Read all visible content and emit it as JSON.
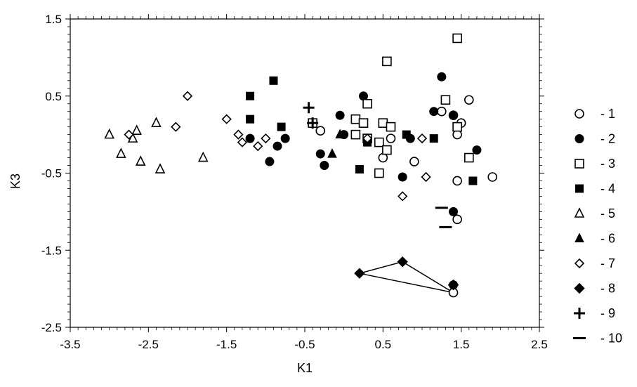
{
  "chart_data": {
    "type": "scatter",
    "xlabel": "K1",
    "ylabel": "K3",
    "xlim": [
      -3.5,
      2.5
    ],
    "ylim": [
      -2.5,
      1.5
    ],
    "xticks": [
      -3.5,
      -2.5,
      -1.5,
      -0.5,
      0.5,
      1.5,
      2.5
    ],
    "xtick_labels": [
      "-3.5",
      "-2.5",
      "-1.5",
      "-0.5",
      "0.5",
      "1.5",
      "2.5"
    ],
    "yticks": [
      -2.5,
      -1.5,
      -0.5,
      0.5,
      1.5
    ],
    "ytick_labels": [
      "-2.5",
      "-1.5",
      "-0.5",
      "0.5",
      "1.5"
    ],
    "grid": false,
    "legend_position": "right",
    "series": [
      {
        "name": "- 1",
        "marker": "circle-open",
        "points": [
          [
            1.4,
            0.25
          ],
          [
            1.25,
            0.3
          ],
          [
            1.5,
            0.15
          ],
          [
            1.6,
            0.45
          ],
          [
            1.45,
            0.0
          ],
          [
            -0.3,
            0.05
          ],
          [
            0.5,
            -0.3
          ],
          [
            0.6,
            0.1
          ],
          [
            0.6,
            -0.05
          ],
          [
            0.9,
            -0.35
          ],
          [
            1.45,
            -0.6
          ],
          [
            1.9,
            -0.55
          ],
          [
            1.45,
            -1.1
          ],
          [
            1.4,
            -2.05
          ]
        ]
      },
      {
        "name": "- 2",
        "marker": "circle-filled",
        "points": [
          [
            1.25,
            0.75
          ],
          [
            1.15,
            0.3
          ],
          [
            1.4,
            0.25
          ],
          [
            0.25,
            0.5
          ],
          [
            -0.05,
            0.25
          ],
          [
            0.0,
            0.0
          ],
          [
            0.3,
            -0.05
          ],
          [
            0.85,
            -0.05
          ],
          [
            1.7,
            -0.2
          ],
          [
            -0.3,
            -0.25
          ],
          [
            -0.25,
            -0.4
          ],
          [
            -0.95,
            -0.35
          ],
          [
            -0.85,
            -0.15
          ],
          [
            -0.75,
            -0.05
          ],
          [
            -1.2,
            -0.05
          ],
          [
            0.75,
            -0.55
          ],
          [
            1.4,
            -1.0
          ],
          [
            1.4,
            -1.95
          ]
        ]
      },
      {
        "name": "- 3",
        "marker": "square-open",
        "points": [
          [
            1.45,
            1.25
          ],
          [
            0.55,
            0.95
          ],
          [
            1.3,
            0.45
          ],
          [
            0.3,
            0.4
          ],
          [
            0.15,
            0.2
          ],
          [
            0.25,
            0.15
          ],
          [
            0.5,
            0.15
          ],
          [
            0.6,
            0.1
          ],
          [
            1.45,
            0.1
          ],
          [
            0.15,
            0.0
          ],
          [
            0.3,
            -0.05
          ],
          [
            0.45,
            -0.1
          ],
          [
            0.55,
            -0.2
          ],
          [
            1.6,
            -0.3
          ],
          [
            0.45,
            -0.5
          ],
          [
            -0.4,
            0.15
          ]
        ]
      },
      {
        "name": "- 4",
        "marker": "square-filled",
        "points": [
          [
            -0.9,
            0.7
          ],
          [
            -1.2,
            0.5
          ],
          [
            -1.2,
            0.2
          ],
          [
            -0.8,
            0.1
          ],
          [
            0.3,
            -0.1
          ],
          [
            0.8,
            0.0
          ],
          [
            1.15,
            -0.05
          ],
          [
            0.2,
            -0.45
          ],
          [
            1.65,
            -0.6
          ]
        ]
      },
      {
        "name": "- 5",
        "marker": "triangle-open",
        "points": [
          [
            -3.0,
            0.0
          ],
          [
            -2.65,
            0.05
          ],
          [
            -2.4,
            0.15
          ],
          [
            -2.85,
            -0.25
          ],
          [
            -2.7,
            -0.05
          ],
          [
            -2.6,
            -0.35
          ],
          [
            -2.35,
            -0.45
          ],
          [
            -1.8,
            -0.3
          ]
        ]
      },
      {
        "name": "- 6",
        "marker": "triangle-filled",
        "points": [
          [
            -0.05,
            0.0
          ],
          [
            -0.15,
            -0.25
          ]
        ]
      },
      {
        "name": "- 7",
        "marker": "diamond-open",
        "points": [
          [
            -2.0,
            0.5
          ],
          [
            -2.75,
            0.0
          ],
          [
            -2.15,
            0.1
          ],
          [
            -1.5,
            0.2
          ],
          [
            -1.35,
            0.0
          ],
          [
            -1.3,
            -0.1
          ],
          [
            -1.1,
            -0.15
          ],
          [
            -1.0,
            -0.05
          ],
          [
            0.3,
            -0.05
          ],
          [
            1.0,
            -0.05
          ],
          [
            1.05,
            -0.55
          ],
          [
            0.75,
            -0.8
          ]
        ]
      },
      {
        "name": "- 8",
        "marker": "diamond-filled",
        "points": [
          [
            0.2,
            -1.8
          ],
          [
            0.75,
            -1.65
          ],
          [
            1.4,
            -1.95
          ]
        ]
      },
      {
        "name": "- 9",
        "marker": "plus",
        "points": [
          [
            -0.45,
            0.35
          ],
          [
            -0.4,
            0.15
          ]
        ]
      },
      {
        "name": "- 10",
        "marker": "dash",
        "points": [
          [
            1.25,
            -0.95
          ],
          [
            1.3,
            -1.2
          ]
        ]
      }
    ],
    "connector": {
      "points": [
        [
          0.2,
          -1.8
        ],
        [
          0.75,
          -1.65
        ],
        [
          1.4,
          -2.05
        ],
        [
          0.2,
          -1.8
        ]
      ]
    }
  }
}
